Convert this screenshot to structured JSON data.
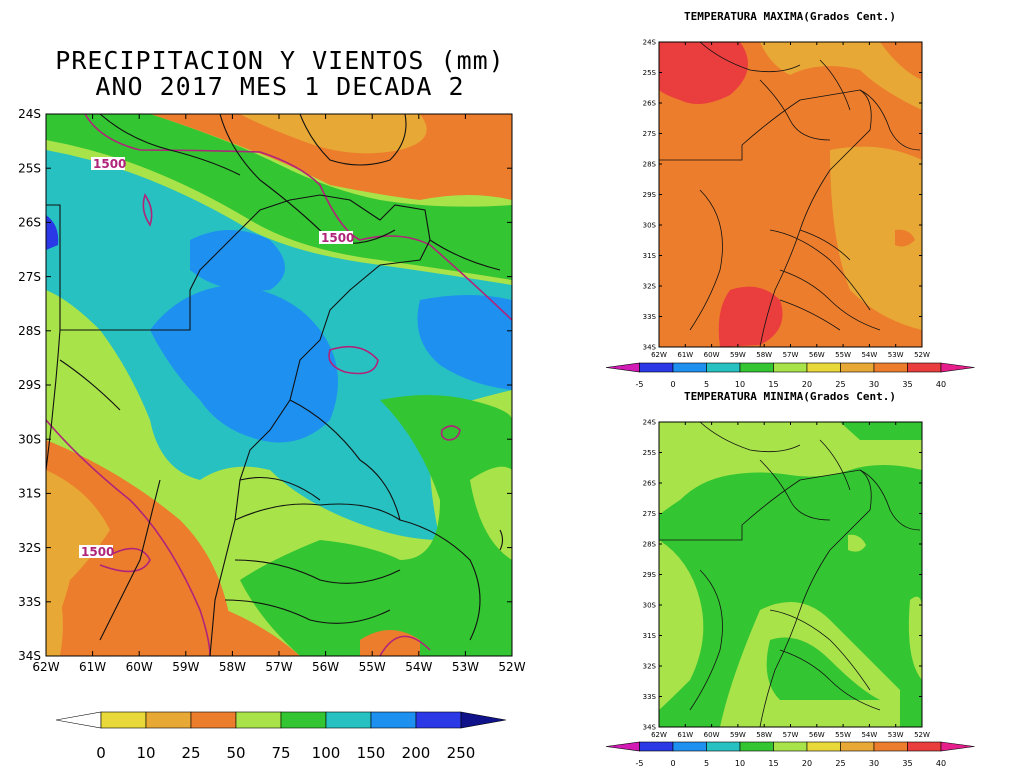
{
  "main_map": {
    "title_line1": "PRECIPITACION Y VIENTOS (mm)",
    "title_line2": "ANO 2017 MES 1 DECADA 2",
    "lat_labels": [
      "24S",
      "25S",
      "26S",
      "27S",
      "28S",
      "29S",
      "30S",
      "31S",
      "32S",
      "33S",
      "34S"
    ],
    "lon_labels": [
      "62W",
      "61W",
      "60W",
      "59W",
      "58W",
      "57W",
      "56W",
      "55W",
      "54W",
      "53W",
      "52W"
    ],
    "contour_labels": [
      "1500",
      "1500",
      "1500"
    ],
    "colorbar": {
      "labels": [
        "0",
        "10",
        "25",
        "50",
        "75",
        "100",
        "150",
        "200",
        "250"
      ],
      "colors": [
        "#ffffff",
        "#e8d83a",
        "#e8a835",
        "#ec7d2d",
        "#a8e34a",
        "#34c532",
        "#28c1c1",
        "#1e90f0",
        "#2a38e6",
        "#10128a"
      ]
    }
  },
  "tmax_map": {
    "title": "TEMPERATURA MAXIMA(Grados Cent.)",
    "lat_labels": [
      "24S",
      "25S",
      "26S",
      "27S",
      "28S",
      "29S",
      "30S",
      "31S",
      "32S",
      "33S",
      "34S"
    ],
    "lon_labels": [
      "62W",
      "61W",
      "60W",
      "59W",
      "58W",
      "57W",
      "56W",
      "55W",
      "54W",
      "53W",
      "52W"
    ]
  },
  "tmin_map": {
    "title": "TEMPERATURA MINIMA(Grados Cent.)",
    "lat_labels": [
      "24S",
      "25S",
      "26S",
      "27S",
      "28S",
      "29S",
      "30S",
      "31S",
      "32S",
      "33S",
      "34S"
    ],
    "lon_labels": [
      "62W",
      "61W",
      "60W",
      "59W",
      "58W",
      "57W",
      "56W",
      "55W",
      "54W",
      "53W",
      "52W"
    ]
  },
  "temp_colorbar": {
    "labels": [
      "-5",
      "0",
      "5",
      "10",
      "15",
      "20",
      "25",
      "30",
      "35",
      "40"
    ],
    "colors": [
      "#d21ab4",
      "#2a38e6",
      "#1e90f0",
      "#28c1c1",
      "#34c532",
      "#a8e34a",
      "#e8d83a",
      "#e8a835",
      "#ec7d2d",
      "#ea3d3d",
      "#e61e8c"
    ]
  }
}
